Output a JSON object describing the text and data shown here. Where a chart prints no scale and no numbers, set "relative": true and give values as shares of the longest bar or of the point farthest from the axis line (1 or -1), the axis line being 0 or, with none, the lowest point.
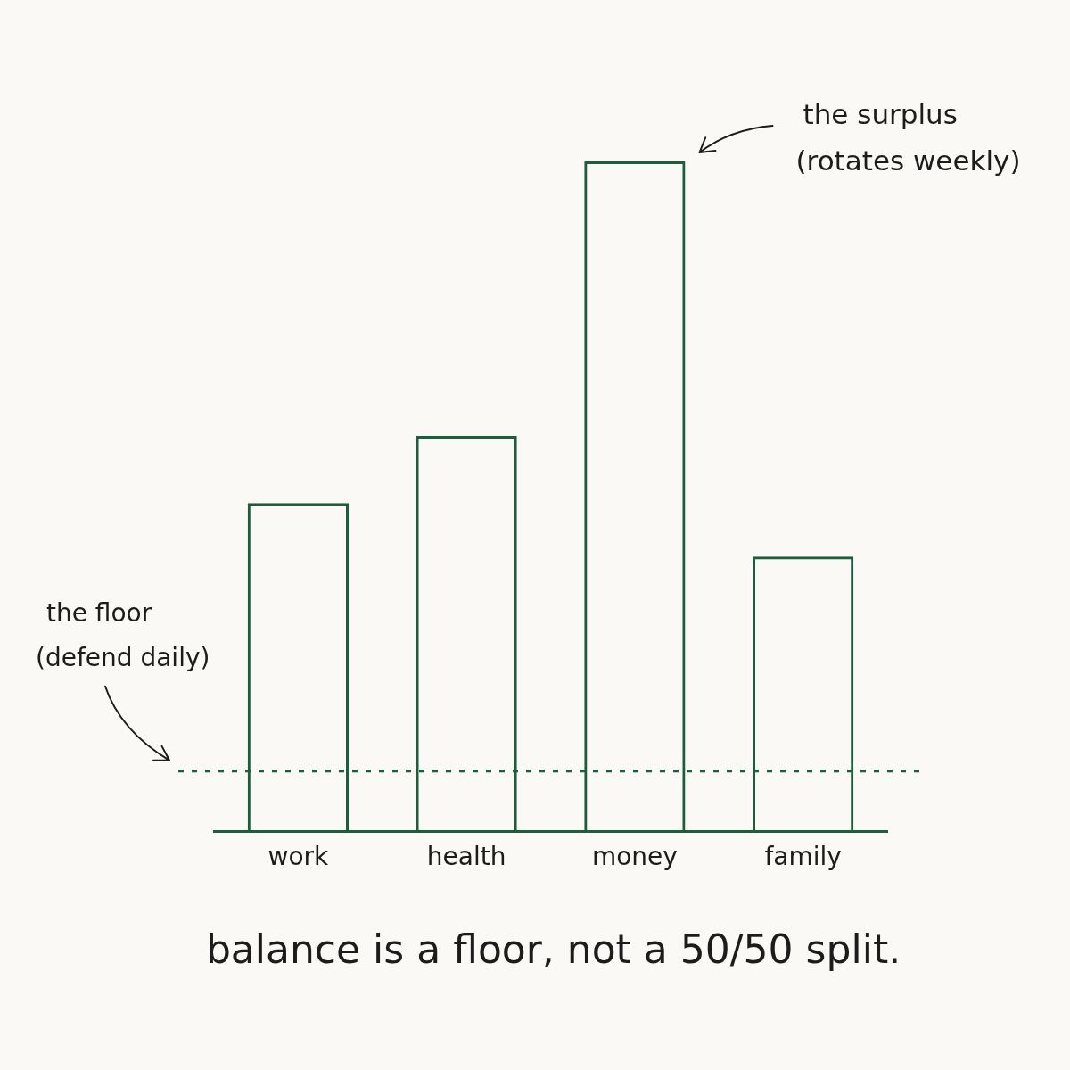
{
  "chart_data": {
    "type": "bar",
    "relative": true,
    "categories": [
      "work",
      "health",
      "money",
      "family"
    ],
    "values": [
      0.49,
      0.59,
      1,
      0.41
    ],
    "color": "#1d5e3a",
    "ref_lines": [
      {
        "axis": "y",
        "value": 0.09,
        "color": "#1d5e3a",
        "line_style": "dotted"
      }
    ],
    "annotations": [
      "the floor\n(defend daily)",
      "the surplus\n(rotates weekly)",
      "balance is a floor, not a 50/50 split."
    ]
  }
}
